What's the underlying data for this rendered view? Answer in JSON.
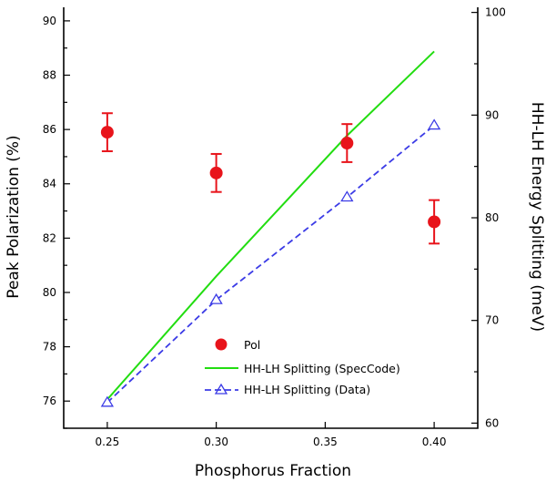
{
  "chart_data": {
    "type": "scatter",
    "xlabel": "Phosphorus Fraction",
    "ylabel_left": "Peak Polarization (%)",
    "ylabel_right": "HH-LH Energy Splitting (meV)",
    "xlim": [
      0.23,
      0.42
    ],
    "ylim_left": [
      75,
      90.5
    ],
    "ylim_right": [
      59.5,
      100.5
    ],
    "x_ticks": [
      "0.25",
      "0.30",
      "0.35",
      "0.40"
    ],
    "x_tick_values": [
      0.25,
      0.3,
      0.35,
      0.4
    ],
    "y_left_ticks": [
      "76",
      "78",
      "80",
      "82",
      "84",
      "86",
      "88",
      "90"
    ],
    "y_left_tick_values": [
      76,
      78,
      80,
      82,
      84,
      86,
      88,
      90
    ],
    "y_right_ticks": [
      "60",
      "70",
      "80",
      "90",
      "100"
    ],
    "y_right_tick_values": [
      60,
      70,
      80,
      90,
      100
    ],
    "grid": false,
    "legend_position": "bottom-center",
    "series": [
      {
        "name": "Pol",
        "axis": "left",
        "style": "marker",
        "color": "#e8141b",
        "x": [
          0.25,
          0.3,
          0.36,
          0.4
        ],
        "y": [
          85.9,
          84.4,
          85.5,
          82.6
        ],
        "error": [
          0.7,
          0.7,
          0.7,
          0.8
        ]
      },
      {
        "name": "HH-LH Splitting (SpecCode)",
        "axis": "right",
        "style": "solid-line",
        "color": "#22dd11",
        "x": [
          0.25,
          0.3,
          0.36,
          0.4
        ],
        "y": [
          62.3,
          74.3,
          88.0,
          96.2
        ]
      },
      {
        "name": "HH-LH Splitting (Data)",
        "axis": "right",
        "style": "dashed-line-triangle",
        "color": "#3b3be6",
        "x": [
          0.25,
          0.3,
          0.36,
          0.4
        ],
        "y": [
          62.0,
          72.0,
          82.0,
          89.0
        ]
      }
    ]
  }
}
